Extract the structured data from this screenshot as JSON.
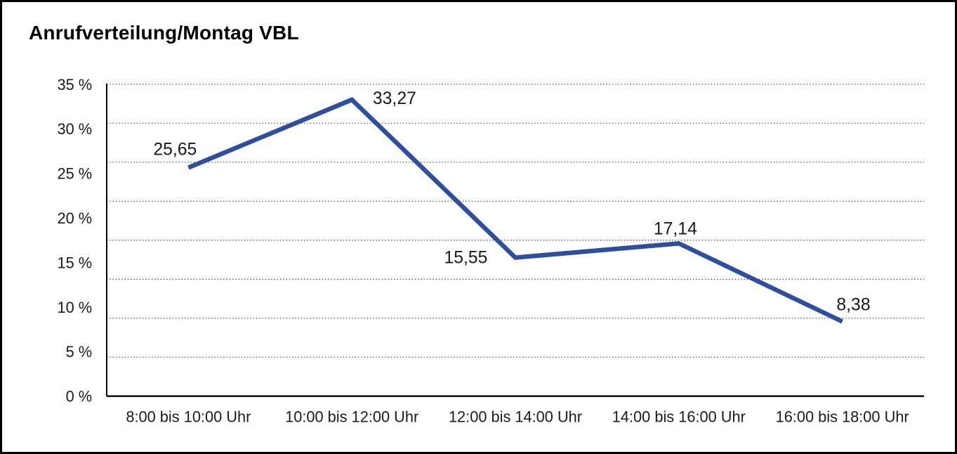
{
  "window": {
    "background_color": "#ffffff",
    "border_color": "#000000"
  },
  "title": "Anrufverteilung/Montag VBL",
  "chart_data": {
    "type": "line",
    "title": "Anrufverteilung/Montag VBL",
    "categories": [
      "8:00 bis 10:00 Uhr",
      "10:00 bis 12:00 Uhr",
      "12:00 bis 14:00 Uhr",
      "14:00 bis 16:00 Uhr",
      "16:00 bis 18:00 Uhr"
    ],
    "values": [
      25.65,
      33.27,
      15.55,
      17.14,
      8.38
    ],
    "point_labels": [
      "25,65",
      "33,27",
      "15,55",
      "17,14",
      "8,38"
    ],
    "xlabel": "",
    "ylabel": "",
    "ylim": [
      0,
      35
    ],
    "ytick_interval": 5,
    "ytick_labels_top_to_bottom": [
      "35 %",
      "30 %",
      "25 %",
      "20 %",
      "15 %",
      "10 %",
      "5 %",
      "0 %"
    ],
    "grid": "horizontal-dotted",
    "legend": "none",
    "line_color": "#2F4F9E",
    "grid_color": "#555555",
    "axis_color": "#000000",
    "text_color": "#1a1a1a"
  }
}
